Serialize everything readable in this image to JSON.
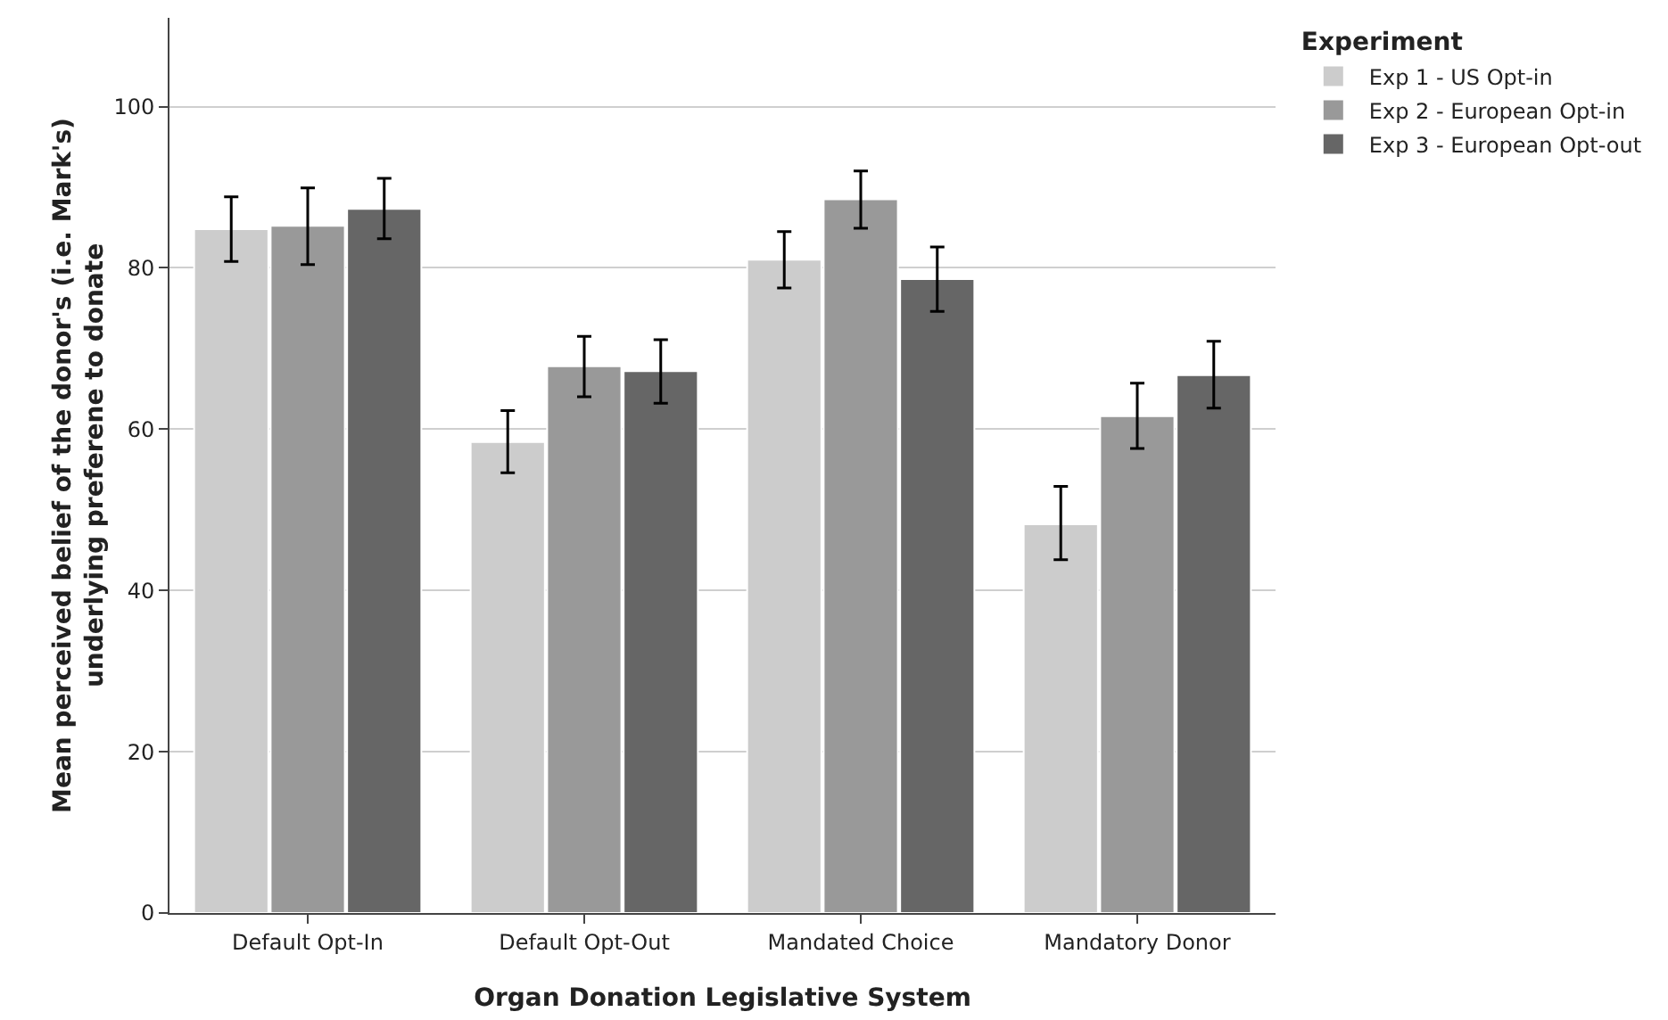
{
  "chart_data": {
    "type": "bar",
    "xlabel": "Organ Donation Legislative System",
    "ylabel": "Mean perceived belief of the donor's (i.e. Mark's)\nunderlying preferene to donate",
    "legend_title": "Experiment",
    "categories": [
      "Default Opt-In",
      "Default Opt-Out",
      "Mandated Choice",
      "Mandatory Donor"
    ],
    "series": [
      {
        "name": "Exp 1 - US Opt-in",
        "color": "#cccccc",
        "values": [
          84.8,
          58.4,
          81.0,
          48.2
        ],
        "errors": [
          [
            80.8,
            88.8
          ],
          [
            54.6,
            62.3
          ],
          [
            77.5,
            84.5
          ],
          [
            43.8,
            52.9
          ]
        ]
      },
      {
        "name": "Exp 2 - European Opt-in",
        "color": "#999999",
        "values": [
          85.2,
          67.8,
          88.5,
          61.6
        ],
        "errors": [
          [
            80.4,
            89.9
          ],
          [
            64.0,
            71.5
          ],
          [
            84.9,
            92.0
          ],
          [
            57.6,
            65.7
          ]
        ]
      },
      {
        "name": "Exp 3 - European Opt-out",
        "color": "#666666",
        "values": [
          87.3,
          67.2,
          78.6,
          66.7
        ],
        "errors": [
          [
            83.6,
            91.1
          ],
          [
            63.2,
            71.1
          ],
          [
            74.6,
            82.6
          ],
          [
            62.6,
            70.9
          ]
        ]
      }
    ],
    "ylim": [
      0,
      111
    ],
    "yticks": [
      0,
      20,
      40,
      60,
      80,
      100
    ],
    "grid": "y",
    "legend": "top right"
  }
}
